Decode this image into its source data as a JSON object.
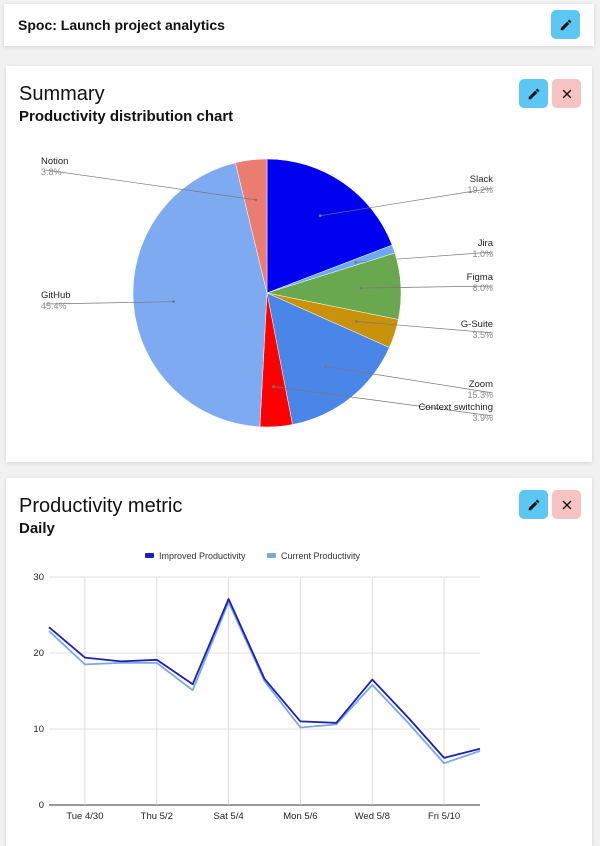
{
  "header": {
    "title": "Spoc: Launch project analytics"
  },
  "summary": {
    "heading": "Summary",
    "subheading": "Productivity distribution chart"
  },
  "metric": {
    "heading": "Productivity metric",
    "subheading": "Daily"
  },
  "icons": {
    "edit": "pencil-icon",
    "close": "close-icon"
  },
  "colors": {
    "edit_button": "#5bc7f2",
    "close_button": "#f6c2c2"
  },
  "chart_data": [
    {
      "type": "pie",
      "slices": [
        {
          "label": "Slack",
          "percent": "19.2%",
          "value": 19.2,
          "color": "#0000f0"
        },
        {
          "label": "Jira",
          "percent": "1.0%",
          "value": 1.0,
          "color": "#6ea8f0"
        },
        {
          "label": "Figma",
          "percent": "8.0%",
          "value": 8.0,
          "color": "#6aa84f"
        },
        {
          "label": "G-Suite",
          "percent": "3.5%",
          "value": 3.5,
          "color": "#c8920a"
        },
        {
          "label": "Zoom",
          "percent": "15.3%",
          "value": 15.3,
          "color": "#4a86e8"
        },
        {
          "label": "Context switching",
          "percent": "3.9%",
          "value": 3.9,
          "color": "#ff0000"
        },
        {
          "label": "GitHub",
          "percent": "45.4%",
          "value": 45.4,
          "color": "#7eaaf2"
        },
        {
          "label": "Notion",
          "percent": "3.8%",
          "value": 3.8,
          "color": "#ea7c70"
        }
      ]
    },
    {
      "type": "line",
      "x": [
        "4/29",
        "4/30",
        "5/1",
        "5/2",
        "5/3",
        "5/4",
        "5/5",
        "5/6",
        "5/7",
        "5/8",
        "5/9",
        "5/10",
        "5/11"
      ],
      "x_tick_labels": [
        "Tue 4/30",
        "Thu 5/2",
        "Sat 5/4",
        "Mon 5/6",
        "Wed 5/8",
        "Fri 5/10"
      ],
      "ylim": [
        0,
        30
      ],
      "yticks": [
        "0",
        "10",
        "20",
        "30"
      ],
      "legend_position": "top",
      "series": [
        {
          "name": "Improved Productivity",
          "color": "#1a1fb8",
          "values": [
            23.4,
            19.4,
            18.9,
            19.1,
            15.9,
            27.1,
            16.6,
            11.0,
            10.8,
            16.5,
            11.5,
            6.2,
            7.4
          ]
        },
        {
          "name": "Current Productivity",
          "color": "#7aa9e0",
          "values": [
            22.9,
            18.5,
            18.7,
            18.7,
            15.1,
            26.7,
            16.3,
            10.2,
            10.6,
            15.8,
            10.8,
            5.5,
            7.1
          ]
        }
      ]
    }
  ]
}
